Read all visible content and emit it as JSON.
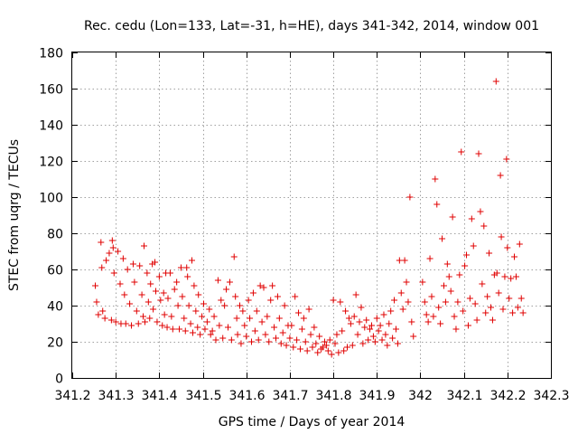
{
  "chart_data": {
    "type": "scatter",
    "title": "Rec. cedu (Lon=133, Lat=-31, h=HE), days 341-342, 2014, window 001",
    "xlabel": "GPS time / Days of year 2014",
    "ylabel": "STEC from uqrg / TECUs",
    "xlim": [
      341.2,
      342.3
    ],
    "ylim": [
      0,
      180
    ],
    "xticks": [
      341.2,
      341.3,
      341.4,
      341.5,
      341.6,
      341.7,
      341.8,
      341.9,
      342,
      342.1,
      342.2,
      342.3
    ],
    "xtick_labels": [
      "341.2",
      "341.3",
      "341.4",
      "341.5",
      "341.6",
      "341.7",
      "341.8",
      "341.9",
      "342",
      "342.1",
      "342.2",
      "342.3"
    ],
    "yticks": [
      0,
      20,
      40,
      60,
      80,
      100,
      120,
      140,
      160,
      180
    ],
    "ytick_labels": [
      "0",
      "20",
      "40",
      "60",
      "80",
      "100",
      "120",
      "140",
      "160",
      "180"
    ],
    "grid": true,
    "marker": "+",
    "color": "#e00000",
    "points": [
      [
        341.253,
        51
      ],
      [
        341.256,
        42
      ],
      [
        341.26,
        35
      ],
      [
        341.266,
        75
      ],
      [
        341.268,
        61
      ],
      [
        341.27,
        37
      ],
      [
        341.275,
        33
      ],
      [
        341.278,
        65
      ],
      [
        341.285,
        69
      ],
      [
        341.29,
        32
      ],
      [
        341.292,
        76
      ],
      [
        341.294,
        72
      ],
      [
        341.296,
        58
      ],
      [
        341.3,
        31
      ],
      [
        341.305,
        70
      ],
      [
        341.31,
        52
      ],
      [
        341.312,
        30
      ],
      [
        341.317,
        66
      ],
      [
        341.32,
        46
      ],
      [
        341.323,
        30
      ],
      [
        341.327,
        60
      ],
      [
        341.332,
        41
      ],
      [
        341.336,
        29
      ],
      [
        341.34,
        63
      ],
      [
        341.343,
        53
      ],
      [
        341.348,
        37
      ],
      [
        341.352,
        30
      ],
      [
        341.355,
        62
      ],
      [
        341.36,
        46
      ],
      [
        341.363,
        34
      ],
      [
        341.365,
        73
      ],
      [
        341.367,
        31
      ],
      [
        341.372,
        58
      ],
      [
        341.375,
        42
      ],
      [
        341.378,
        33
      ],
      [
        341.38,
        52
      ],
      [
        341.384,
        63
      ],
      [
        341.386,
        38
      ],
      [
        341.39,
        64
      ],
      [
        341.392,
        48
      ],
      [
        341.395,
        31
      ],
      [
        341.4,
        56
      ],
      [
        341.403,
        43
      ],
      [
        341.407,
        29
      ],
      [
        341.41,
        47
      ],
      [
        341.412,
        35
      ],
      [
        341.415,
        58
      ],
      [
        341.418,
        28
      ],
      [
        341.42,
        44
      ],
      [
        341.425,
        58
      ],
      [
        341.428,
        34
      ],
      [
        341.431,
        27
      ],
      [
        341.435,
        49
      ],
      [
        341.44,
        53
      ],
      [
        341.443,
        40
      ],
      [
        341.446,
        27
      ],
      [
        341.45,
        61
      ],
      [
        341.453,
        45
      ],
      [
        341.457,
        33
      ],
      [
        341.46,
        26
      ],
      [
        341.463,
        61
      ],
      [
        341.465,
        56
      ],
      [
        341.468,
        40
      ],
      [
        341.472,
        30
      ],
      [
        341.475,
        65
      ],
      [
        341.477,
        25
      ],
      [
        341.48,
        51
      ],
      [
        341.484,
        37
      ],
      [
        341.488,
        28
      ],
      [
        341.49,
        46
      ],
      [
        341.494,
        24
      ],
      [
        341.498,
        34
      ],
      [
        341.502,
        41
      ],
      [
        341.505,
        27
      ],
      [
        341.51,
        31
      ],
      [
        341.515,
        38
      ],
      [
        341.518,
        24
      ],
      [
        341.522,
        26
      ],
      [
        341.526,
        34
      ],
      [
        341.53,
        21
      ],
      [
        341.535,
        54
      ],
      [
        341.538,
        29
      ],
      [
        341.542,
        43
      ],
      [
        341.546,
        22
      ],
      [
        341.55,
        40
      ],
      [
        341.554,
        49
      ],
      [
        341.558,
        28
      ],
      [
        341.562,
        53
      ],
      [
        341.566,
        21
      ],
      [
        341.572,
        67
      ],
      [
        341.575,
        45
      ],
      [
        341.578,
        33
      ],
      [
        341.58,
        24
      ],
      [
        341.585,
        40
      ],
      [
        341.588,
        19
      ],
      [
        341.592,
        37
      ],
      [
        341.596,
        29
      ],
      [
        341.6,
        23
      ],
      [
        341.605,
        43
      ],
      [
        341.608,
        33
      ],
      [
        341.612,
        20
      ],
      [
        341.616,
        47
      ],
      [
        341.62,
        26
      ],
      [
        341.624,
        37
      ],
      [
        341.628,
        21
      ],
      [
        341.632,
        51
      ],
      [
        341.636,
        31
      ],
      [
        341.64,
        50
      ],
      [
        341.644,
        24
      ],
      [
        341.648,
        34
      ],
      [
        341.652,
        20
      ],
      [
        341.656,
        43
      ],
      [
        341.66,
        51
      ],
      [
        341.664,
        28
      ],
      [
        341.668,
        22
      ],
      [
        341.672,
        45
      ],
      [
        341.676,
        33
      ],
      [
        341.68,
        19
      ],
      [
        341.684,
        25
      ],
      [
        341.688,
        40
      ],
      [
        341.692,
        18
      ],
      [
        341.696,
        29
      ],
      [
        341.7,
        22
      ],
      [
        341.704,
        29
      ],
      [
        341.708,
        17
      ],
      [
        341.712,
        45
      ],
      [
        341.716,
        21
      ],
      [
        341.72,
        36
      ],
      [
        341.724,
        16
      ],
      [
        341.728,
        27
      ],
      [
        341.732,
        33
      ],
      [
        341.736,
        20
      ],
      [
        341.74,
        15
      ],
      [
        341.744,
        38
      ],
      [
        341.748,
        24
      ],
      [
        341.752,
        17
      ],
      [
        341.756,
        28
      ],
      [
        341.76,
        19
      ],
      [
        341.764,
        14
      ],
      [
        341.768,
        23
      ],
      [
        341.772,
        16
      ],
      [
        341.776,
        17
      ],
      [
        341.78,
        20
      ],
      [
        341.784,
        18
      ],
      [
        341.788,
        15
      ],
      [
        341.792,
        21
      ],
      [
        341.796,
        13
      ],
      [
        341.8,
        43
      ],
      [
        341.804,
        19
      ],
      [
        341.808,
        24
      ],
      [
        341.812,
        14
      ],
      [
        341.816,
        42
      ],
      [
        341.82,
        26
      ],
      [
        341.824,
        15
      ],
      [
        341.828,
        37
      ],
      [
        341.832,
        17
      ],
      [
        341.836,
        33
      ],
      [
        341.84,
        30
      ],
      [
        341.844,
        18
      ],
      [
        341.848,
        34
      ],
      [
        341.852,
        46
      ],
      [
        341.856,
        24
      ],
      [
        341.86,
        31
      ],
      [
        341.864,
        39
      ],
      [
        341.868,
        19
      ],
      [
        341.872,
        28
      ],
      [
        341.876,
        32
      ],
      [
        341.88,
        21
      ],
      [
        341.884,
        27
      ],
      [
        341.888,
        29
      ],
      [
        341.892,
        23
      ],
      [
        341.896,
        20
      ],
      [
        341.9,
        33
      ],
      [
        341.904,
        26
      ],
      [
        341.908,
        29
      ],
      [
        341.912,
        21
      ],
      [
        341.916,
        35
      ],
      [
        341.92,
        24
      ],
      [
        341.924,
        18
      ],
      [
        341.928,
        30
      ],
      [
        341.932,
        37
      ],
      [
        341.936,
        22
      ],
      [
        341.94,
        43
      ],
      [
        341.944,
        27
      ],
      [
        341.948,
        19
      ],
      [
        341.952,
        65
      ],
      [
        341.956,
        47
      ],
      [
        341.96,
        38
      ],
      [
        341.964,
        65
      ],
      [
        341.968,
        53
      ],
      [
        341.972,
        42
      ],
      [
        341.976,
        100
      ],
      [
        341.98,
        31
      ],
      [
        341.984,
        23
      ],
      [
        342.005,
        53
      ],
      [
        342.01,
        42
      ],
      [
        342.014,
        35
      ],
      [
        342.018,
        31
      ],
      [
        342.022,
        66
      ],
      [
        342.026,
        45
      ],
      [
        342.03,
        34
      ],
      [
        342.034,
        110
      ],
      [
        342.038,
        96
      ],
      [
        342.042,
        39
      ],
      [
        342.046,
        30
      ],
      [
        342.05,
        77
      ],
      [
        342.054,
        51
      ],
      [
        342.058,
        42
      ],
      [
        342.062,
        63
      ],
      [
        342.066,
        56
      ],
      [
        342.07,
        48
      ],
      [
        342.074,
        89
      ],
      [
        342.078,
        34
      ],
      [
        342.082,
        27
      ],
      [
        342.086,
        42
      ],
      [
        342.09,
        57
      ],
      [
        342.094,
        125
      ],
      [
        342.098,
        37
      ],
      [
        342.102,
        62
      ],
      [
        342.106,
        68
      ],
      [
        342.11,
        29
      ],
      [
        342.114,
        44
      ],
      [
        342.118,
        88
      ],
      [
        342.122,
        73
      ],
      [
        342.126,
        41
      ],
      [
        342.13,
        32
      ],
      [
        342.134,
        124
      ],
      [
        342.138,
        92
      ],
      [
        342.142,
        52
      ],
      [
        342.146,
        84
      ],
      [
        342.15,
        36
      ],
      [
        342.154,
        45
      ],
      [
        342.158,
        69
      ],
      [
        342.162,
        39
      ],
      [
        342.166,
        32
      ],
      [
        342.17,
        57
      ],
      [
        342.174,
        164
      ],
      [
        342.176,
        58
      ],
      [
        342.18,
        47
      ],
      [
        342.184,
        112
      ],
      [
        342.186,
        78
      ],
      [
        342.19,
        38
      ],
      [
        342.194,
        56
      ],
      [
        342.198,
        121
      ],
      [
        342.2,
        72
      ],
      [
        342.204,
        44
      ],
      [
        342.208,
        55
      ],
      [
        342.212,
        36
      ],
      [
        342.216,
        67
      ],
      [
        342.22,
        56
      ],
      [
        342.224,
        39
      ],
      [
        342.228,
        74
      ],
      [
        342.232,
        44
      ],
      [
        342.236,
        36
      ]
    ]
  }
}
